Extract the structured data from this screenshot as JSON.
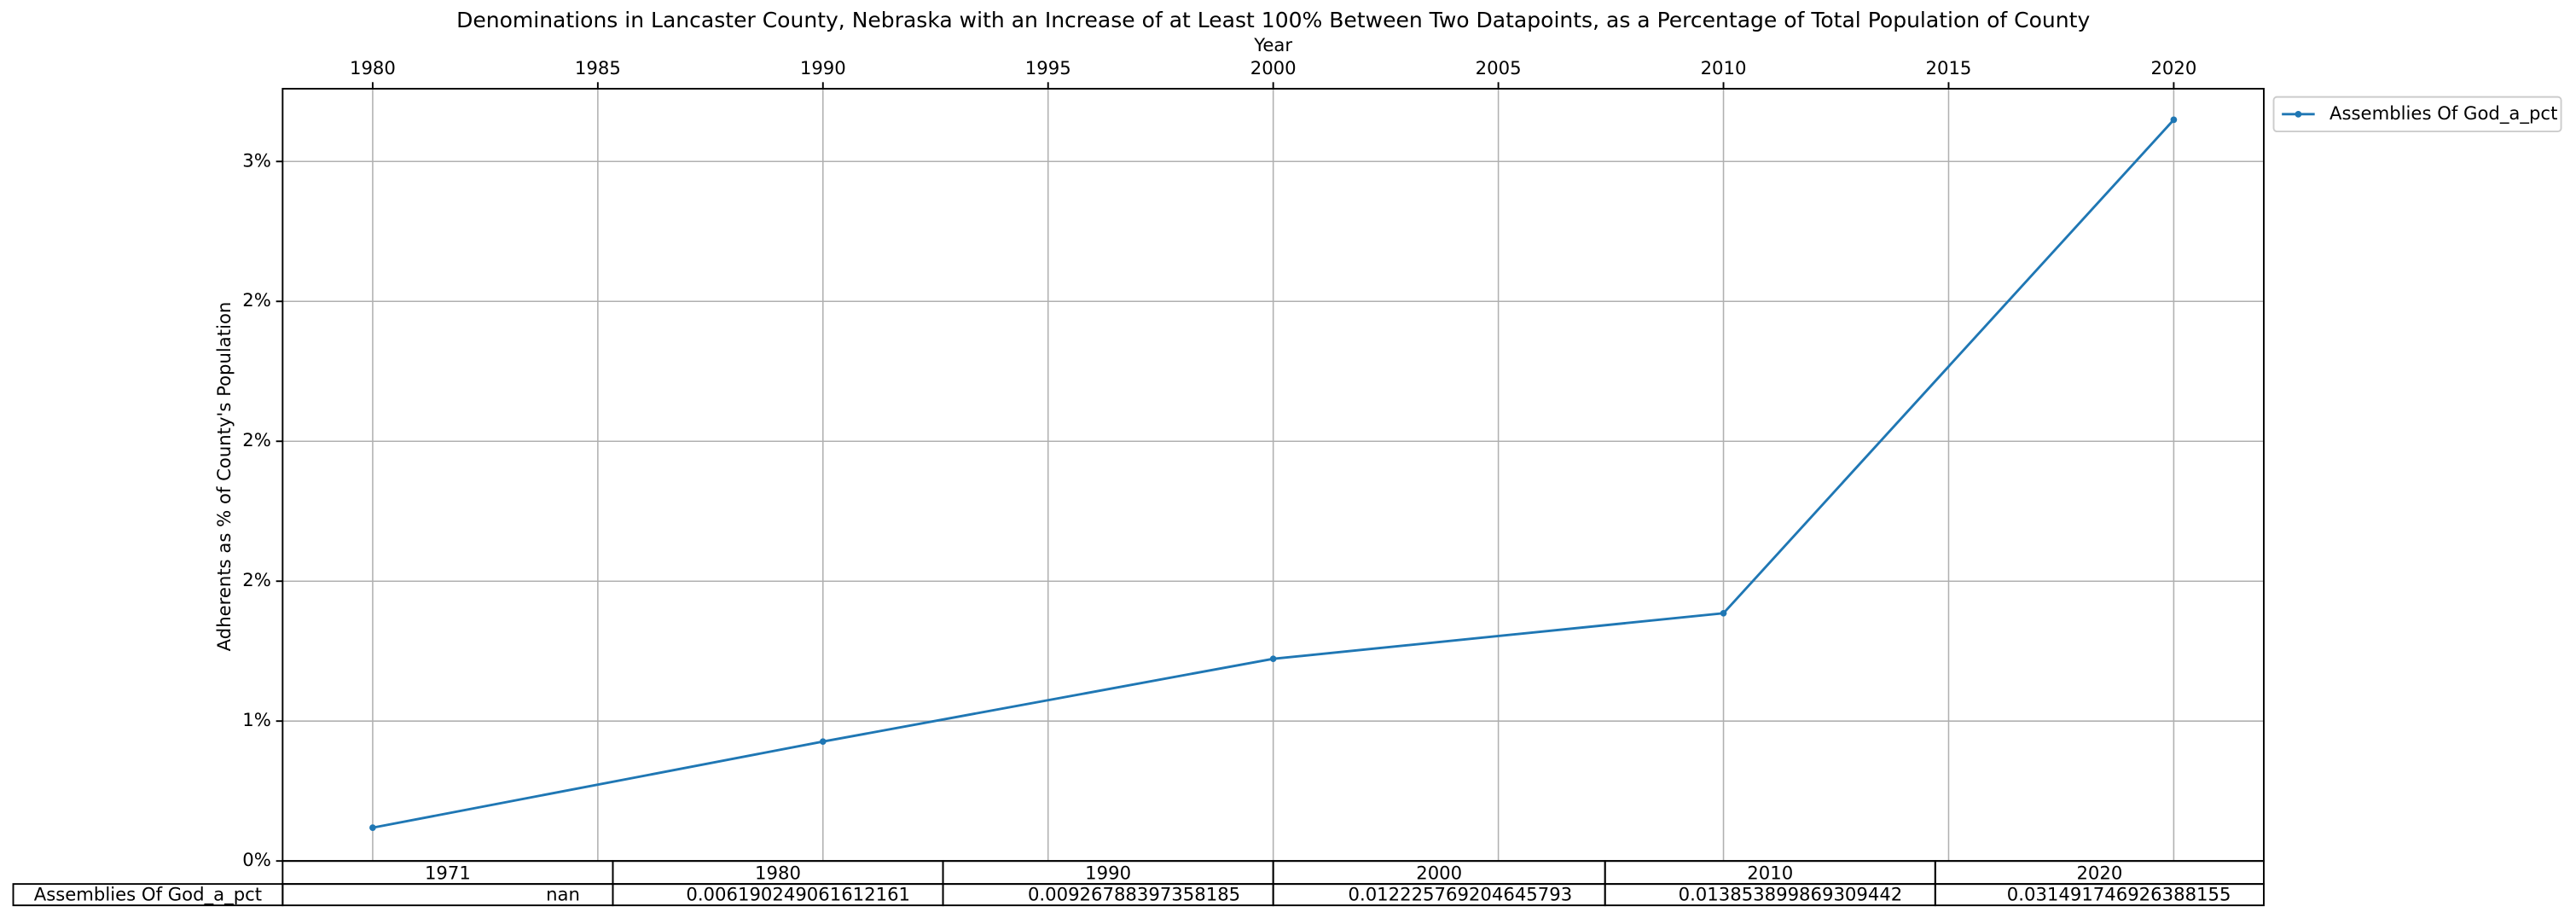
{
  "chart_data": {
    "type": "line",
    "title": "Denominations in Lancaster County, Nebraska with an Increase of at Least 100% Between Two Datapoints, as a Percentage of Total Population of County",
    "x_label": "Year",
    "y_label": "Adherents as % of County's Population",
    "x": [
      1980,
      1990,
      2000,
      2010,
      2020
    ],
    "xlim": [
      1978,
      2022
    ],
    "xticks": [
      1980,
      1985,
      1990,
      1995,
      2000,
      2005,
      2010,
      2015,
      2020
    ],
    "ylim": [
      0.005,
      0.0326
    ],
    "yticks": [
      {
        "value": 0.005,
        "label": "0%"
      },
      {
        "value": 0.01,
        "label": "1%"
      },
      {
        "value": 0.015,
        "label": "2%"
      },
      {
        "value": 0.02,
        "label": "2%"
      },
      {
        "value": 0.025,
        "label": "2%"
      },
      {
        "value": 0.03,
        "label": "3%"
      }
    ],
    "grid": true,
    "legend": "outside-right",
    "series": [
      {
        "name": "Assemblies Of God_a_pct",
        "color": "#1f77b4",
        "values": [
          0.006190249061612161,
          0.00926788397358185,
          0.012225769204645793,
          0.013853899869309442,
          0.031491746926388155
        ]
      }
    ]
  },
  "table": {
    "columns": [
      "1971",
      "1980",
      "1990",
      "2000",
      "2010",
      "2020"
    ],
    "rows": [
      {
        "label": "Assemblies Of God_a_pct",
        "cells": [
          "nan",
          "0.006190249061612161",
          "0.00926788397358185",
          "0.012225769204645793",
          "0.013853899869309442",
          "0.031491746926388155"
        ]
      }
    ]
  }
}
